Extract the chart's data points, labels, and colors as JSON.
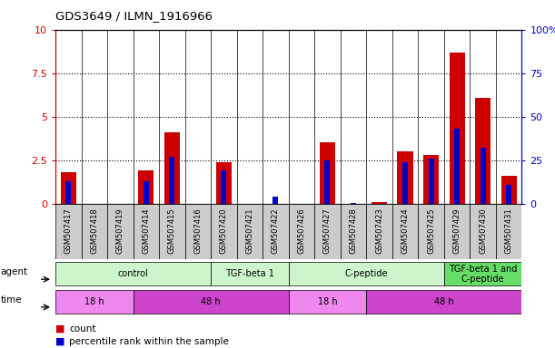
{
  "title": "GDS3649 / ILMN_1916966",
  "samples": [
    "GSM507417",
    "GSM507418",
    "GSM507419",
    "GSM507414",
    "GSM507415",
    "GSM507416",
    "GSM507420",
    "GSM507421",
    "GSM507422",
    "GSM507426",
    "GSM507427",
    "GSM507428",
    "GSM507423",
    "GSM507424",
    "GSM507425",
    "GSM507429",
    "GSM507430",
    "GSM507431"
  ],
  "count_values": [
    1.8,
    0.0,
    0.0,
    1.9,
    4.1,
    0.0,
    2.4,
    0.0,
    0.0,
    0.0,
    3.5,
    0.0,
    0.1,
    3.0,
    2.8,
    8.7,
    6.1,
    1.6
  ],
  "percentile_values": [
    13,
    0,
    0,
    13,
    27,
    0,
    19,
    0,
    4,
    0,
    25,
    0.5,
    0,
    24,
    26,
    43,
    32,
    11
  ],
  "count_color": "#cc0000",
  "percentile_color": "#0000cc",
  "ylim_left": [
    0,
    10
  ],
  "ylim_right": [
    0,
    100
  ],
  "yticks_left": [
    0,
    2.5,
    5.0,
    7.5,
    10
  ],
  "yticks_right": [
    0,
    25,
    50,
    75,
    100
  ],
  "ytick_labels_left": [
    "0",
    "2.5",
    "5",
    "7.5",
    "10"
  ],
  "ytick_labels_right": [
    "0",
    "25",
    "50",
    "75",
    "100%"
  ],
  "agent_groups": [
    {
      "label": "control",
      "start": 0,
      "end": 6,
      "color": "#ccf5cc"
    },
    {
      "label": "TGF-beta 1",
      "start": 6,
      "end": 9,
      "color": "#ccf5cc"
    },
    {
      "label": "C-peptide",
      "start": 9,
      "end": 15,
      "color": "#ccf5cc"
    },
    {
      "label": "TGF-beta 1 and\nC-peptide",
      "start": 15,
      "end": 18,
      "color": "#66dd66"
    }
  ],
  "time_groups": [
    {
      "label": "18 h",
      "start": 0,
      "end": 3,
      "color": "#ee88ee"
    },
    {
      "label": "48 h",
      "start": 3,
      "end": 9,
      "color": "#cc44cc"
    },
    {
      "label": "18 h",
      "start": 9,
      "end": 12,
      "color": "#ee88ee"
    },
    {
      "label": "48 h",
      "start": 12,
      "end": 18,
      "color": "#cc44cc"
    }
  ],
  "ylabel_left_color": "#cc0000",
  "ylabel_right_color": "#0000cc",
  "sample_bg_color": "#cccccc",
  "plot_bg_color": "#ffffff"
}
